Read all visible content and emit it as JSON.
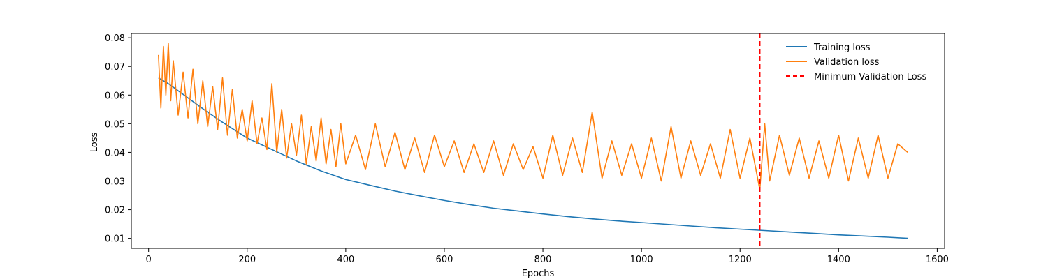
{
  "chart_data": {
    "type": "line",
    "title": "",
    "xlabel": "Epochs",
    "ylabel": "Loss",
    "xlim": [
      -35,
      1615
    ],
    "ylim": [
      0.0065,
      0.0815
    ],
    "grid": false,
    "legend_position": "top-right",
    "xticks": [
      0,
      200,
      400,
      600,
      800,
      1000,
      1200,
      1400,
      1600
    ],
    "yticks": [
      0.01,
      0.02,
      0.03,
      0.04,
      0.05,
      0.06,
      0.07,
      0.08
    ],
    "series": [
      {
        "name": "Training loss",
        "color": "#1f77b4",
        "style": "solid",
        "x": [
          20,
          40,
          60,
          80,
          100,
          120,
          150,
          200,
          250,
          300,
          350,
          400,
          450,
          500,
          550,
          600,
          650,
          700,
          750,
          800,
          850,
          900,
          950,
          1000,
          1050,
          1100,
          1150,
          1200,
          1250,
          1300,
          1350,
          1400,
          1450,
          1500,
          1540
        ],
        "y": [
          0.066,
          0.064,
          0.0615,
          0.059,
          0.0565,
          0.054,
          0.0505,
          0.045,
          0.041,
          0.037,
          0.0335,
          0.0305,
          0.0285,
          0.0265,
          0.0248,
          0.0232,
          0.0218,
          0.0205,
          0.0195,
          0.0185,
          0.0176,
          0.0168,
          0.0161,
          0.0155,
          0.0149,
          0.0143,
          0.0137,
          0.0132,
          0.0127,
          0.0122,
          0.0117,
          0.0112,
          0.0108,
          0.0104,
          0.01
        ]
      },
      {
        "name": "Validation loss",
        "color": "#ff7f0e",
        "style": "solid",
        "x": [
          20,
          25,
          30,
          35,
          40,
          45,
          50,
          60,
          70,
          80,
          90,
          100,
          110,
          120,
          130,
          140,
          150,
          160,
          170,
          180,
          190,
          200,
          210,
          220,
          230,
          240,
          250,
          260,
          270,
          280,
          290,
          300,
          310,
          320,
          330,
          340,
          350,
          360,
          370,
          380,
          390,
          400,
          420,
          440,
          460,
          480,
          500,
          520,
          540,
          560,
          580,
          600,
          620,
          640,
          660,
          680,
          700,
          720,
          740,
          760,
          780,
          800,
          820,
          840,
          860,
          880,
          900,
          920,
          940,
          960,
          980,
          1000,
          1020,
          1040,
          1060,
          1080,
          1100,
          1120,
          1140,
          1160,
          1180,
          1200,
          1220,
          1240,
          1250,
          1260,
          1280,
          1300,
          1320,
          1340,
          1360,
          1380,
          1400,
          1420,
          1440,
          1460,
          1480,
          1500,
          1520,
          1540
        ],
        "y": [
          0.074,
          0.0555,
          0.077,
          0.06,
          0.078,
          0.058,
          0.072,
          0.053,
          0.068,
          0.052,
          0.069,
          0.05,
          0.065,
          0.049,
          0.063,
          0.048,
          0.066,
          0.046,
          0.062,
          0.045,
          0.055,
          0.044,
          0.058,
          0.043,
          0.052,
          0.041,
          0.064,
          0.04,
          0.055,
          0.038,
          0.05,
          0.039,
          0.053,
          0.036,
          0.049,
          0.037,
          0.052,
          0.036,
          0.048,
          0.035,
          0.05,
          0.036,
          0.046,
          0.034,
          0.05,
          0.035,
          0.047,
          0.034,
          0.045,
          0.033,
          0.046,
          0.035,
          0.044,
          0.033,
          0.043,
          0.033,
          0.044,
          0.032,
          0.043,
          0.034,
          0.042,
          0.031,
          0.046,
          0.032,
          0.045,
          0.033,
          0.054,
          0.031,
          0.044,
          0.032,
          0.043,
          0.031,
          0.045,
          0.03,
          0.049,
          0.031,
          0.044,
          0.032,
          0.043,
          0.031,
          0.048,
          0.031,
          0.045,
          0.027,
          0.05,
          0.03,
          0.046,
          0.032,
          0.045,
          0.031,
          0.044,
          0.031,
          0.046,
          0.03,
          0.045,
          0.031,
          0.046,
          0.031,
          0.043,
          0.04
        ]
      },
      {
        "name": "Minimum Validation Loss",
        "color": "#ff0000",
        "style": "dashed",
        "vline_x": 1240
      }
    ]
  }
}
